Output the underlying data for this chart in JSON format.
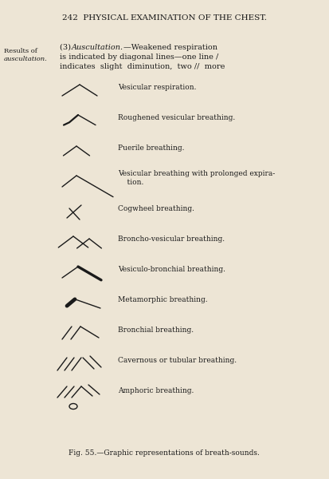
{
  "bg_color": "#ede5d5",
  "text_color": "#1a1a1a",
  "title": "242  PHYSICAL EXAMINATION OF THE CHEST.",
  "left_label_line1": "Results of",
  "left_label_line2": "auscultation.",
  "caption": "Fig. 55.—Graphic representations of breath-sounds.",
  "items": [
    {
      "label": "Vesicular respiration.",
      "type": "vesicular"
    },
    {
      "label": "Roughened vesicular breathing.",
      "type": "roughened"
    },
    {
      "label": "Puerile breathing.",
      "type": "puerile"
    },
    {
      "label": "Vesicular breathing with prolonged expira-\n    tion.",
      "type": "prolonged"
    },
    {
      "label": "Cogwheel breathing.",
      "type": "cogwheel"
    },
    {
      "label": "Broncho-vesicular breathing.",
      "type": "broncho"
    },
    {
      "label": "Vesiculo-bronchial breathing.",
      "type": "vesiculobronchial"
    },
    {
      "label": "Metamorphic breathing.",
      "type": "metamorphic"
    },
    {
      "label": "Bronchial breathing.",
      "type": "bronchial"
    },
    {
      "label": "Cavernous or tubular breathing.",
      "type": "cavernous"
    },
    {
      "label": "Amphoric breathing.",
      "type": "amphoric"
    }
  ]
}
